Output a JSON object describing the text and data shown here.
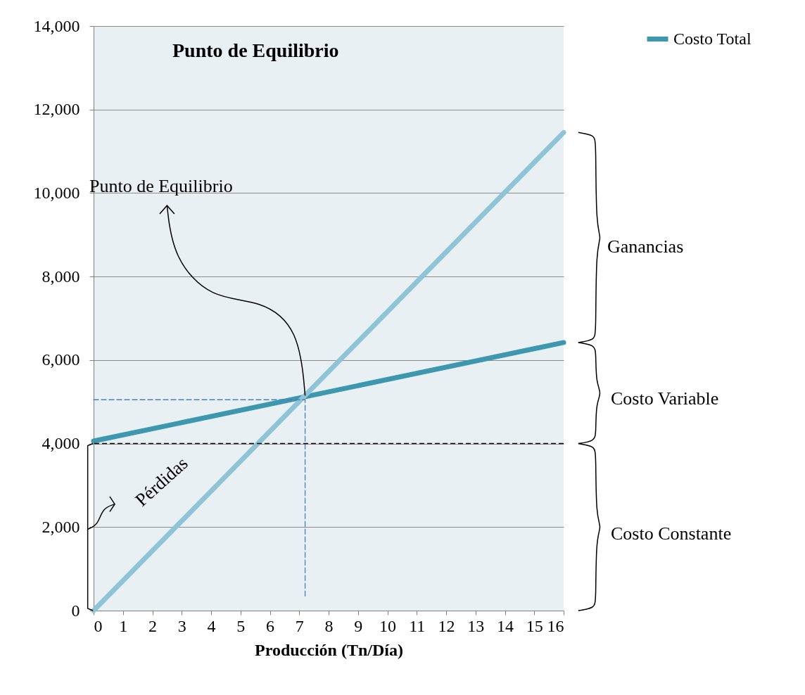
{
  "chart_data": {
    "type": "line",
    "title": "Punto de Equilibrio",
    "xlabel": "Producción (Tn/Día)",
    "xlim": [
      0,
      16
    ],
    "xticks": [
      0,
      1,
      2,
      3,
      4,
      5,
      6,
      7,
      8,
      9,
      10,
      11,
      12,
      13,
      14,
      15,
      16
    ],
    "ylim": [
      0,
      14000
    ],
    "yticks": [
      {
        "value": 0,
        "label": "0"
      },
      {
        "value": 2000,
        "label": "2,000"
      },
      {
        "value": 4000,
        "label": "4,000"
      },
      {
        "value": 6000,
        "label": "6,000"
      },
      {
        "value": 8000,
        "label": "8,000"
      },
      {
        "value": 10000,
        "label": "10,000"
      },
      {
        "value": 12000,
        "label": "12,000"
      },
      {
        "value": 14000,
        "label": "14,000"
      }
    ],
    "grid": "y",
    "legend": "top right",
    "marker": "none",
    "series": [
      {
        "name": "Costo Total",
        "color": "#3d97ae",
        "x": [
          0,
          16
        ],
        "values": [
          4060,
          6420
        ]
      },
      {
        "color": "#8fc3d6",
        "x": [
          0,
          16
        ],
        "values": [
          0,
          11450
        ]
      },
      {
        "color": "#4a7ebf",
        "line_style": "dashed",
        "x": [
          0,
          7.2
        ],
        "values": [
          5050,
          5050
        ]
      },
      {
        "color": "#4a7ebf",
        "line_style": "dashed",
        "x": [
          7.2,
          7.2
        ],
        "values": [
          350,
          5050
        ]
      }
    ],
    "ref_lines": [
      {
        "axis": "y",
        "value": 4000,
        "color": "#000000",
        "line_style": "dashed"
      }
    ],
    "annotations": [
      "Punto de Equilibrio",
      "Pérdidas",
      "Ganancias",
      "Costo Variable",
      "Costo Constante"
    ]
  }
}
